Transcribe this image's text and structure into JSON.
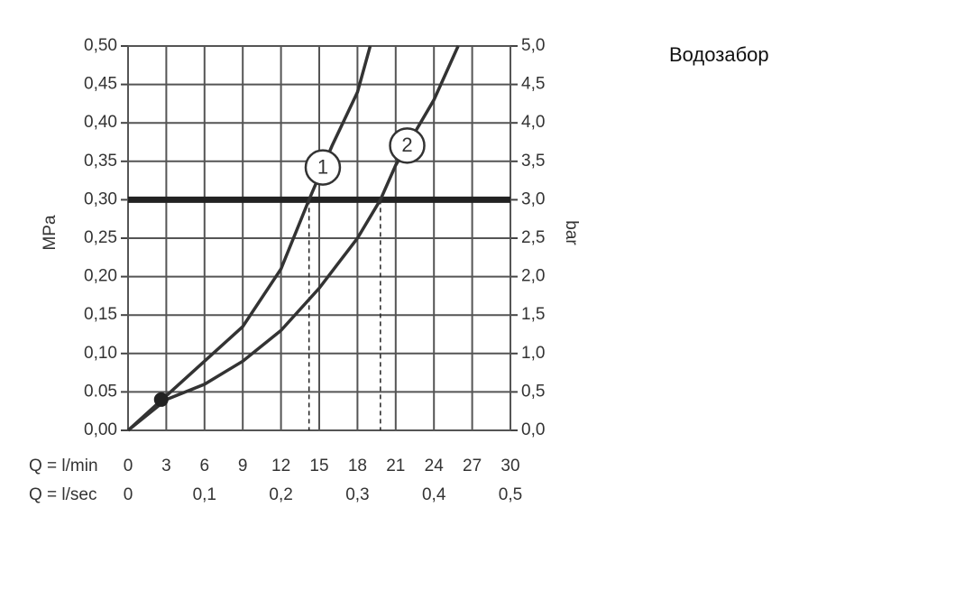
{
  "chart_data": {
    "type": "line",
    "title": "Водозабор",
    "ylabel": "MPa",
    "y2label": "bar",
    "xrow_label": "Q = l/min",
    "x2row_label": "Q = l/sec",
    "xlim": [
      0,
      30
    ],
    "xticks": [
      0,
      3,
      6,
      9,
      12,
      15,
      18,
      21,
      24,
      27,
      30
    ],
    "x2lim": [
      0,
      0.5
    ],
    "x2ticks": [
      0,
      {
        "value": 0.1,
        "label": "0,1"
      },
      {
        "value": 0.2,
        "label": "0,2"
      },
      {
        "value": 0.3,
        "label": "0,3"
      },
      {
        "value": 0.4,
        "label": "0,4"
      },
      {
        "value": 0.5,
        "label": "0,5"
      }
    ],
    "ylim": [
      0,
      0.5
    ],
    "yticks": [
      {
        "value": 0,
        "label": "0,00"
      },
      {
        "value": 0.05,
        "label": "0.05"
      },
      {
        "value": 0.1,
        "label": "0,10"
      },
      {
        "value": 0.15,
        "label": "0,15"
      },
      {
        "value": 0.2,
        "label": "0,20"
      },
      {
        "value": 0.25,
        "label": "0,25"
      },
      {
        "value": 0.3,
        "label": "0,30"
      },
      {
        "value": 0.35,
        "label": "0,35"
      },
      {
        "value": 0.4,
        "label": "0,40"
      },
      {
        "value": 0.45,
        "label": "0,45"
      },
      {
        "value": 0.5,
        "label": "0,50"
      }
    ],
    "y2lim": [
      0,
      5
    ],
    "y2ticks": [
      {
        "value": 0,
        "label": "0,0"
      },
      {
        "value": 0.5,
        "label": "0,5"
      },
      {
        "value": 1,
        "label": "1,0"
      },
      {
        "value": 1.5,
        "label": "1,5"
      },
      {
        "value": 2,
        "label": "2,0"
      },
      {
        "value": 2.5,
        "label": "2,5"
      },
      {
        "value": 3,
        "label": "3,0"
      },
      {
        "value": 3.5,
        "label": "3,5"
      },
      {
        "value": 4,
        "label": "4,0"
      },
      {
        "value": 4.5,
        "label": "4,5"
      },
      {
        "value": 5,
        "label": "5,0"
      }
    ],
    "grid": true,
    "reference_y": 0.3,
    "reference_x": [
      14.2,
      19.8
    ],
    "point": {
      "x": 2.6,
      "y": 0.04
    },
    "series": [
      {
        "name": "1",
        "color": "#333333",
        "x": [
          0,
          3,
          6,
          9,
          12,
          14.2,
          16,
          18,
          19
        ],
        "values": [
          0,
          0.045,
          0.09,
          0.135,
          0.21,
          0.3,
          0.37,
          0.44,
          0.5
        ]
      },
      {
        "name": "2",
        "color": "#333333",
        "x": [
          0,
          3,
          6,
          9,
          12,
          15,
          18,
          19.8,
          21,
          24,
          25.9
        ],
        "values": [
          0,
          0.04,
          0.06,
          0.09,
          0.13,
          0.185,
          0.25,
          0.3,
          0.345,
          0.43,
          0.5
        ]
      }
    ]
  }
}
